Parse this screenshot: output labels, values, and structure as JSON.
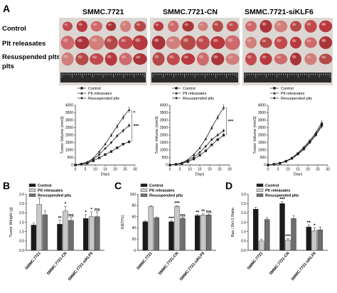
{
  "panel_a": {
    "letter": "A",
    "group_titles": [
      "SMMC.7721",
      "SMMC.7721-CN",
      "SMMC.7721-siKLF6"
    ],
    "row_labels": [
      "Control",
      "Plt releasates",
      "Resuspended plts"
    ]
  },
  "panel_b": {
    "letter": "B"
  },
  "panel_c": {
    "letter": "C"
  },
  "panel_d": {
    "letter": "D"
  },
  "chart_data": [
    {
      "id": "tumor-growth-smmc7721",
      "type": "line",
      "xlabel": "Days",
      "ylabel": "Tumor Volume (mm3)",
      "xlim": [
        0,
        30
      ],
      "ylim": [
        0,
        4000
      ],
      "xticks": [
        0,
        5,
        10,
        15,
        20,
        25,
        30
      ],
      "yticks": [
        0,
        500,
        1000,
        1500,
        2000,
        2500,
        3000,
        3500,
        4000
      ],
      "x": [
        0,
        3,
        6,
        9,
        12,
        15,
        18,
        21,
        24,
        27
      ],
      "series": [
        {
          "name": "Control",
          "values": [
            0,
            50,
            120,
            280,
            480,
            700,
            900,
            1150,
            1400,
            1550
          ]
        },
        {
          "name": "Plt releasates",
          "values": [
            0,
            80,
            200,
            450,
            900,
            1400,
            2000,
            2600,
            3200,
            3700
          ]
        },
        {
          "name": "Resuspended plts",
          "values": [
            0,
            70,
            160,
            380,
            700,
            1100,
            1500,
            1950,
            2300,
            2650
          ]
        }
      ],
      "annotations": [
        "***",
        "*"
      ],
      "legend": "top-left"
    },
    {
      "id": "tumor-growth-smmc7721-cn",
      "type": "line",
      "xlabel": "Days",
      "ylabel": "Tumor Volume (mm3)",
      "xlim": [
        0,
        30
      ],
      "ylim": [
        0,
        4000
      ],
      "xticks": [
        0,
        5,
        10,
        15,
        20,
        25,
        30
      ],
      "yticks": [
        0,
        500,
        1000,
        1500,
        2000,
        2500,
        3000,
        3500,
        4000
      ],
      "x": [
        0,
        3,
        6,
        9,
        12,
        15,
        18,
        21,
        24,
        27
      ],
      "series": [
        {
          "name": "Control",
          "values": [
            0,
            40,
            100,
            220,
            400,
            650,
            950,
            1350,
            1700,
            2000
          ]
        },
        {
          "name": "Plt releasates",
          "values": [
            0,
            60,
            150,
            350,
            700,
            1150,
            1750,
            2500,
            3200,
            3850
          ]
        },
        {
          "name": "Resuspended plts",
          "values": [
            0,
            50,
            130,
            280,
            520,
            850,
            1250,
            1700,
            2000,
            2300
          ]
        }
      ],
      "annotations": [
        "***"
      ],
      "legend": "top-left"
    },
    {
      "id": "tumor-growth-smmc7721-siklf6",
      "type": "line",
      "xlabel": "Days",
      "ylabel": "Tumor Volume (mm3)",
      "xlim": [
        0,
        30
      ],
      "ylim": [
        0,
        4000
      ],
      "xticks": [
        0,
        5,
        10,
        15,
        20,
        25,
        30
      ],
      "yticks": [
        0,
        500,
        1000,
        1500,
        2000,
        2500,
        3000,
        3500,
        4000
      ],
      "x": [
        0,
        3,
        6,
        9,
        12,
        15,
        18,
        21,
        24,
        27
      ],
      "series": [
        {
          "name": "Control",
          "values": [
            0,
            50,
            120,
            250,
            450,
            750,
            1100,
            1550,
            2050,
            2700
          ]
        },
        {
          "name": "Plt releasates",
          "values": [
            0,
            55,
            130,
            270,
            480,
            800,
            1200,
            1650,
            2150,
            2850
          ]
        },
        {
          "name": "Resuspended plts",
          "values": [
            0,
            45,
            110,
            240,
            430,
            720,
            1050,
            1500,
            2000,
            2600
          ]
        }
      ],
      "legend": "top-left"
    },
    {
      "id": "tumor-weight",
      "type": "bar",
      "ylabel": "Tumor Weight (g)",
      "ylim": [
        0,
        3.0
      ],
      "yticks": [
        0.0,
        0.5,
        1.0,
        1.5,
        2.0,
        2.5,
        3.0
      ],
      "categories": [
        "SMMC.7721",
        "SMMC.7721-CN",
        "SMMC.7721-siKLF6"
      ],
      "series": [
        {
          "name": "Control",
          "values": [
            1.35,
            1.4,
            1.7
          ]
        },
        {
          "name": "Plt releasates",
          "values": [
            2.45,
            2.1,
            1.8
          ]
        },
        {
          "name": "Resuspended plts",
          "values": [
            1.9,
            1.6,
            1.8
          ]
        }
      ],
      "errors": [
        [
          0.1,
          0.2,
          0.2
        ],
        [
          0.35,
          0.25,
          0.25
        ],
        [
          0.2,
          0.15,
          0.25
        ]
      ],
      "sig": [
        [
          "",
          "**",
          "*"
        ],
        [
          "",
          "*",
          "*"
        ],
        [
          "",
          "ns",
          "ns"
        ]
      ],
      "legend": "top-left"
    },
    {
      "id": "ki67",
      "type": "bar",
      "ylabel": "Ki67(%)",
      "ylim": [
        0,
        100
      ],
      "yticks": [
        0,
        20,
        40,
        60,
        80,
        100
      ],
      "categories": [
        "SMMC.7721",
        "SMMC.7721-CN",
        "SMMC.7721-siKLF6"
      ],
      "series": [
        {
          "name": "Control",
          "values": [
            51,
            51,
            62
          ]
        },
        {
          "name": "Plt releasates",
          "values": [
            78,
            78,
            63
          ]
        },
        {
          "name": "Resuspended plts",
          "values": [
            58,
            57,
            63
          ]
        }
      ],
      "errors": [
        [
          1.5,
          1.5,
          1.5
        ],
        [
          1.5,
          1.5,
          2
        ],
        [
          1.5,
          1.5,
          1.5
        ]
      ],
      "sig": [
        [
          "",
          "***",
          "**"
        ],
        [
          "",
          "***",
          "**"
        ],
        [
          "",
          "ns",
          "ns"
        ]
      ],
      "legend": "top-left"
    },
    {
      "id": "bax-bcl2",
      "type": "bar",
      "ylabel": "Bax / Bcl-2 Ratio",
      "ylim": [
        0,
        3.0
      ],
      "yticks": [
        0.0,
        0.5,
        1.0,
        1.5,
        2.0,
        2.5,
        3.0
      ],
      "categories": [
        "SMMC.7721",
        "SMMC.7721-CN",
        "SMMC.7721-siKLF6"
      ],
      "series": [
        {
          "name": "Control",
          "values": [
            2.2,
            2.5,
            1.25
          ]
        },
        {
          "name": "Plt releasates",
          "values": [
            0.5,
            0.55,
            1.05
          ]
        },
        {
          "name": "Resuspended plts",
          "values": [
            1.65,
            1.7,
            1.1
          ]
        }
      ],
      "errors": [
        [
          0.1,
          0.1,
          0.1
        ],
        [
          0.08,
          0.08,
          0.15
        ],
        [
          0.1,
          0.15,
          0.15
        ]
      ],
      "sig": [
        [
          "",
          "***",
          "**"
        ],
        [
          "",
          "***",
          "*"
        ],
        [
          "",
          "",
          ""
        ]
      ],
      "legend": "top-right"
    }
  ]
}
